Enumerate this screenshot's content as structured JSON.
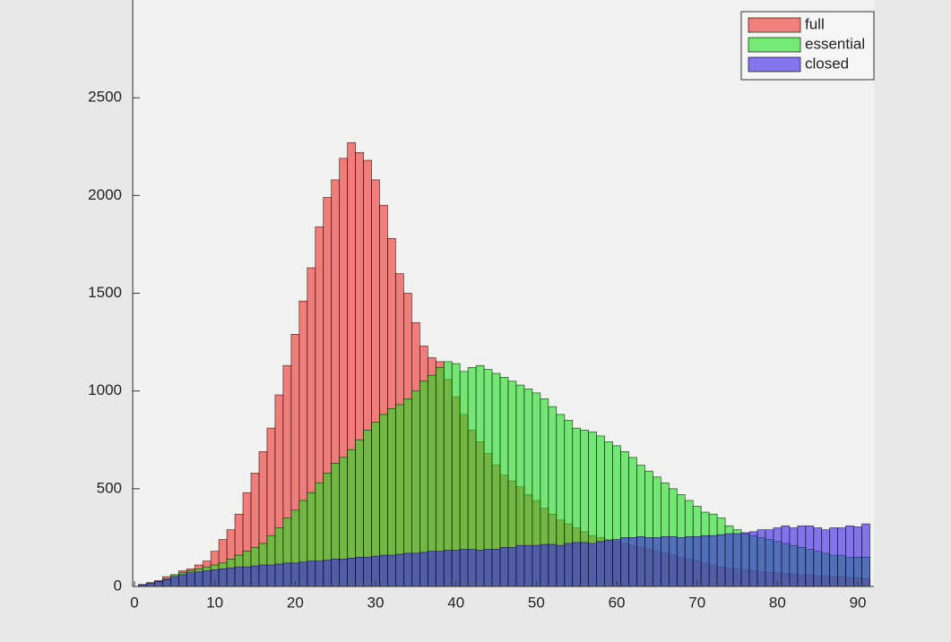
{
  "chart_data": {
    "type": "histogram",
    "bins": [
      0.5,
      1.5,
      2.5,
      3.5,
      4.5,
      5.5,
      6.5,
      7.5,
      8.5,
      9.5,
      10.5,
      11.5,
      12.5,
      13.5,
      14.5,
      15.5,
      16.5,
      17.5,
      18.5,
      19.5,
      20.5,
      21.5,
      22.5,
      23.5,
      24.5,
      25.5,
      26.5,
      27.5,
      28.5,
      29.5,
      30.5,
      31.5,
      32.5,
      33.5,
      34.5,
      35.5,
      36.5,
      37.5,
      38.5,
      39.5,
      40.5,
      41.5,
      42.5,
      43.5,
      44.5,
      45.5,
      46.5,
      47.5,
      48.5,
      49.5,
      50.5,
      51.5,
      52.5,
      53.5,
      54.5,
      55.5,
      56.5,
      57.5,
      58.5,
      59.5,
      60.5,
      61.5,
      62.5,
      63.5,
      64.5,
      65.5,
      66.5,
      67.5,
      68.5,
      69.5,
      70.5,
      71.5,
      72.5,
      73.5,
      74.5,
      75.5,
      76.5,
      77.5,
      78.5,
      79.5,
      80.5,
      81.5,
      82.5,
      83.5,
      84.5,
      85.5,
      86.5,
      87.5,
      88.5,
      89.5,
      90.5,
      91.5
    ],
    "series": [
      {
        "name": "full",
        "color": "#f0302a",
        "values": [
          10,
          20,
          30,
          50,
          60,
          80,
          90,
          110,
          130,
          180,
          240,
          290,
          370,
          480,
          580,
          690,
          810,
          980,
          1130,
          1290,
          1460,
          1630,
          1840,
          1990,
          2080,
          2190,
          2270,
          2220,
          2180,
          2080,
          1950,
          1780,
          1600,
          1500,
          1350,
          1230,
          1170,
          1150,
          1060,
          970,
          880,
          800,
          740,
          680,
          620,
          570,
          540,
          510,
          470,
          440,
          400,
          370,
          340,
          320,
          300,
          280,
          260,
          250,
          240,
          230,
          220,
          210,
          200,
          190,
          180,
          170,
          160,
          150,
          140,
          130,
          120,
          110,
          100,
          95,
          90,
          85,
          80,
          75,
          70,
          70,
          65,
          65,
          60,
          60,
          55,
          55,
          50,
          50,
          45,
          45,
          40
        ]
      },
      {
        "name": "essential",
        "color": "#22e022",
        "values": [
          5,
          15,
          25,
          40,
          60,
          70,
          80,
          90,
          100,
          110,
          120,
          140,
          160,
          180,
          200,
          220,
          260,
          300,
          350,
          390,
          440,
          480,
          530,
          580,
          630,
          660,
          700,
          750,
          800,
          840,
          880,
          910,
          930,
          960,
          1000,
          1050,
          1080,
          1120,
          1150,
          1140,
          1100,
          1120,
          1130,
          1110,
          1090,
          1070,
          1050,
          1030,
          1010,
          990,
          960,
          920,
          880,
          850,
          810,
          800,
          790,
          770,
          740,
          720,
          690,
          660,
          620,
          590,
          560,
          530,
          500,
          470,
          440,
          410,
          380,
          370,
          350,
          310,
          290,
          270,
          260,
          250,
          240,
          230,
          220,
          210,
          200,
          190,
          180,
          170,
          160,
          160,
          150,
          150,
          150
        ]
      },
      {
        "name": "closed",
        "color": "#3a22e8",
        "values": [
          10,
          15,
          25,
          35,
          50,
          60,
          70,
          75,
          80,
          85,
          90,
          95,
          100,
          100,
          105,
          110,
          110,
          115,
          120,
          120,
          125,
          130,
          130,
          135,
          140,
          140,
          145,
          150,
          150,
          155,
          160,
          160,
          165,
          170,
          170,
          175,
          180,
          180,
          185,
          185,
          190,
          190,
          185,
          190,
          190,
          200,
          200,
          210,
          210,
          210,
          215,
          215,
          210,
          220,
          225,
          225,
          220,
          230,
          235,
          240,
          250,
          250,
          255,
          250,
          250,
          255,
          255,
          250,
          255,
          255,
          260,
          260,
          265,
          270,
          270,
          275,
          280,
          290,
          290,
          300,
          310,
          300,
          310,
          310,
          300,
          290,
          300,
          300,
          310,
          305,
          320
        ]
      }
    ],
    "face_alpha": 0.6,
    "xlim": [
      0,
      92
    ],
    "ylim": [
      0,
      3000
    ],
    "xticks": [
      0,
      10,
      20,
      30,
      40,
      50,
      60,
      70,
      80,
      90
    ],
    "yticks": [
      0,
      500,
      1000,
      1500,
      2000,
      2500
    ],
    "legend": "top-right"
  }
}
